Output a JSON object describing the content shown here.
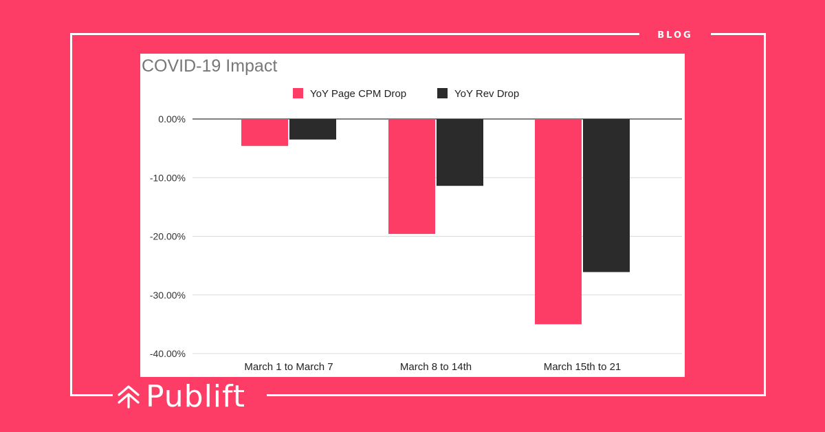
{
  "blog_label": "BLOG",
  "brand": {
    "name": "Publift",
    "icon": "double-chevron-up-icon"
  },
  "colors": {
    "background": "#fe3d66",
    "series1": "#fe3d66",
    "series2": "#2b2b2b",
    "frame": "#ffffff"
  },
  "chart_data": {
    "type": "bar",
    "title": "COVID-19 Impact",
    "categories": [
      "March 1 to March 7",
      "March 8 to 14th",
      "March 15th to 21"
    ],
    "series": [
      {
        "name": "YoY Page CPM Drop",
        "values": [
          -4.6,
          -19.6,
          -35.0
        ]
      },
      {
        "name": "YoY Rev Drop",
        "values": [
          -3.5,
          -11.4,
          -26.1
        ]
      }
    ],
    "y_ticks": [
      "0.00%",
      "-10.00%",
      "-20.00%",
      "-30.00%",
      "-40.00%"
    ],
    "ylim": [
      -40,
      0
    ],
    "legend_position": "top-center",
    "grid": true
  }
}
